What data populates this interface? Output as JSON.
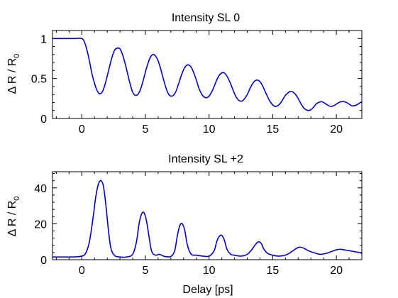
{
  "chart_data": [
    {
      "type": "line",
      "title": "Intensity SL 0",
      "ylabel_main": "Δ R / R",
      "ylabel_sub": "0",
      "xlabel": "",
      "xlim": [
        -2.3,
        22
      ],
      "ylim": [
        0,
        1.1
      ],
      "xticks": [
        0,
        5,
        10,
        15,
        20
      ],
      "yticks": [
        0,
        0.5,
        1
      ],
      "ytick_labels": [
        "0",
        "0.5",
        "1"
      ],
      "xtick_labels": [
        "0",
        "5",
        "10",
        "15",
        "20"
      ],
      "grid": false,
      "color": "#0000cc",
      "series": [
        {
          "x": [
            -2.3,
            -2,
            -1.5,
            -1,
            -0.5,
            0,
            0.2,
            0.4,
            0.6,
            0.8,
            1.0,
            1.2,
            1.4,
            1.6,
            1.8,
            2.0,
            2.2,
            2.4,
            2.6,
            2.8,
            3.0,
            3.2,
            3.4,
            3.6,
            3.8,
            4.0,
            4.2,
            4.4,
            4.6,
            4.8,
            5.0,
            5.2,
            5.4,
            5.6,
            5.8,
            6.0,
            6.2,
            6.4,
            6.6,
            6.8,
            7.0,
            7.2,
            7.4,
            7.6,
            7.8,
            8.0,
            8.2,
            8.4,
            8.6,
            8.8,
            9.0,
            9.2,
            9.4,
            9.6,
            9.8,
            10.0,
            10.2,
            10.4,
            10.6,
            10.8,
            11.0,
            11.2,
            11.4,
            11.6,
            11.8,
            12.0,
            12.2,
            12.4,
            12.6,
            12.8,
            13.0,
            13.2,
            13.4,
            13.6,
            13.8,
            14.0,
            14.2,
            14.4,
            14.6,
            14.8,
            15.0,
            15.2,
            15.4,
            15.6,
            15.8,
            16.0,
            16.2,
            16.4,
            16.6,
            16.8,
            17.0,
            17.2,
            17.4,
            17.6,
            17.8,
            18.0,
            18.2,
            18.4,
            18.6,
            18.8,
            19.0,
            19.2,
            19.4,
            19.6,
            19.8,
            20.0,
            20.2,
            20.4,
            20.6,
            20.8,
            21.0,
            21.2,
            21.4,
            21.6,
            21.8,
            22.0
          ],
          "y": [
            1.0,
            1.0,
            1.0,
            1.0,
            1.0,
            1.0,
            0.96,
            0.86,
            0.72,
            0.56,
            0.44,
            0.35,
            0.31,
            0.33,
            0.41,
            0.53,
            0.66,
            0.78,
            0.86,
            0.88,
            0.87,
            0.8,
            0.69,
            0.56,
            0.43,
            0.33,
            0.29,
            0.3,
            0.36,
            0.46,
            0.58,
            0.69,
            0.77,
            0.8,
            0.78,
            0.72,
            0.62,
            0.5,
            0.39,
            0.31,
            0.28,
            0.29,
            0.34,
            0.43,
            0.53,
            0.61,
            0.66,
            0.67,
            0.64,
            0.57,
            0.48,
            0.38,
            0.31,
            0.27,
            0.26,
            0.28,
            0.33,
            0.4,
            0.48,
            0.54,
            0.57,
            0.57,
            0.53,
            0.47,
            0.39,
            0.31,
            0.25,
            0.22,
            0.22,
            0.25,
            0.3,
            0.37,
            0.43,
            0.47,
            0.48,
            0.46,
            0.41,
            0.34,
            0.27,
            0.21,
            0.17,
            0.15,
            0.16,
            0.19,
            0.24,
            0.29,
            0.32,
            0.34,
            0.33,
            0.3,
            0.25,
            0.19,
            0.14,
            0.11,
            0.1,
            0.11,
            0.14,
            0.18,
            0.2,
            0.21,
            0.2,
            0.18,
            0.16,
            0.15,
            0.16,
            0.18,
            0.2,
            0.21,
            0.21,
            0.2,
            0.18,
            0.16,
            0.16,
            0.17,
            0.19,
            0.21
          ]
        }
      ]
    },
    {
      "type": "line",
      "title": "Intensity SL +2",
      "ylabel_main": "Δ R / R",
      "ylabel_sub": "0",
      "xlabel": "Delay [ps]",
      "xlim": [
        -2.3,
        22
      ],
      "ylim": [
        0,
        49
      ],
      "xticks": [
        0,
        5,
        10,
        15,
        20
      ],
      "yticks": [
        0,
        20,
        40
      ],
      "ytick_labels": [
        "0",
        "20",
        "40"
      ],
      "xtick_labels": [
        "0",
        "5",
        "10",
        "15",
        "20"
      ],
      "grid": false,
      "color": "#0000cc",
      "series": [
        {
          "x": [
            -2.3,
            -1.5,
            -1.0,
            -0.5,
            0,
            0.3,
            0.6,
            0.9,
            1.1,
            1.3,
            1.5,
            1.7,
            1.9,
            2.1,
            2.3,
            2.6,
            3.0,
            3.5,
            4.0,
            4.3,
            4.5,
            4.7,
            4.9,
            5.1,
            5.3,
            5.5,
            5.8,
            6.1,
            6.5,
            7.0,
            7.3,
            7.5,
            7.7,
            7.9,
            8.1,
            8.3,
            8.6,
            9.0,
            9.5,
            10.0,
            10.4,
            10.6,
            10.8,
            11.0,
            11.2,
            11.4,
            11.7,
            12.0,
            12.5,
            13.0,
            13.4,
            13.7,
            13.9,
            14.1,
            14.3,
            14.6,
            15.0,
            15.5,
            16.0,
            16.4,
            16.8,
            17.1,
            17.4,
            17.8,
            18.2,
            18.7,
            19.2,
            19.6,
            20.0,
            20.3,
            20.6,
            21.0,
            21.4,
            21.8,
            22.0
          ],
          "y": [
            1.5,
            1.5,
            1.5,
            1.6,
            2.0,
            3.5,
            10,
            24,
            35,
            42,
            44,
            41,
            30,
            16,
            6,
            2.2,
            1.5,
            1.5,
            3,
            10,
            20,
            25.5,
            26,
            21,
            12,
            4.5,
            2.5,
            3,
            1.8,
            1.8,
            5,
            13,
            19,
            20,
            16,
            8,
            3,
            2.5,
            2,
            2,
            5,
            10,
            13,
            13.5,
            11,
            6,
            3,
            2.5,
            2,
            3,
            6,
            9,
            10,
            9,
            6,
            3.5,
            2.5,
            2,
            2.5,
            4,
            6,
            7,
            6.5,
            5,
            4,
            3,
            3.5,
            4.5,
            5.5,
            5.8,
            5.5,
            5,
            4.5,
            4,
            3.5
          ]
        }
      ]
    }
  ]
}
